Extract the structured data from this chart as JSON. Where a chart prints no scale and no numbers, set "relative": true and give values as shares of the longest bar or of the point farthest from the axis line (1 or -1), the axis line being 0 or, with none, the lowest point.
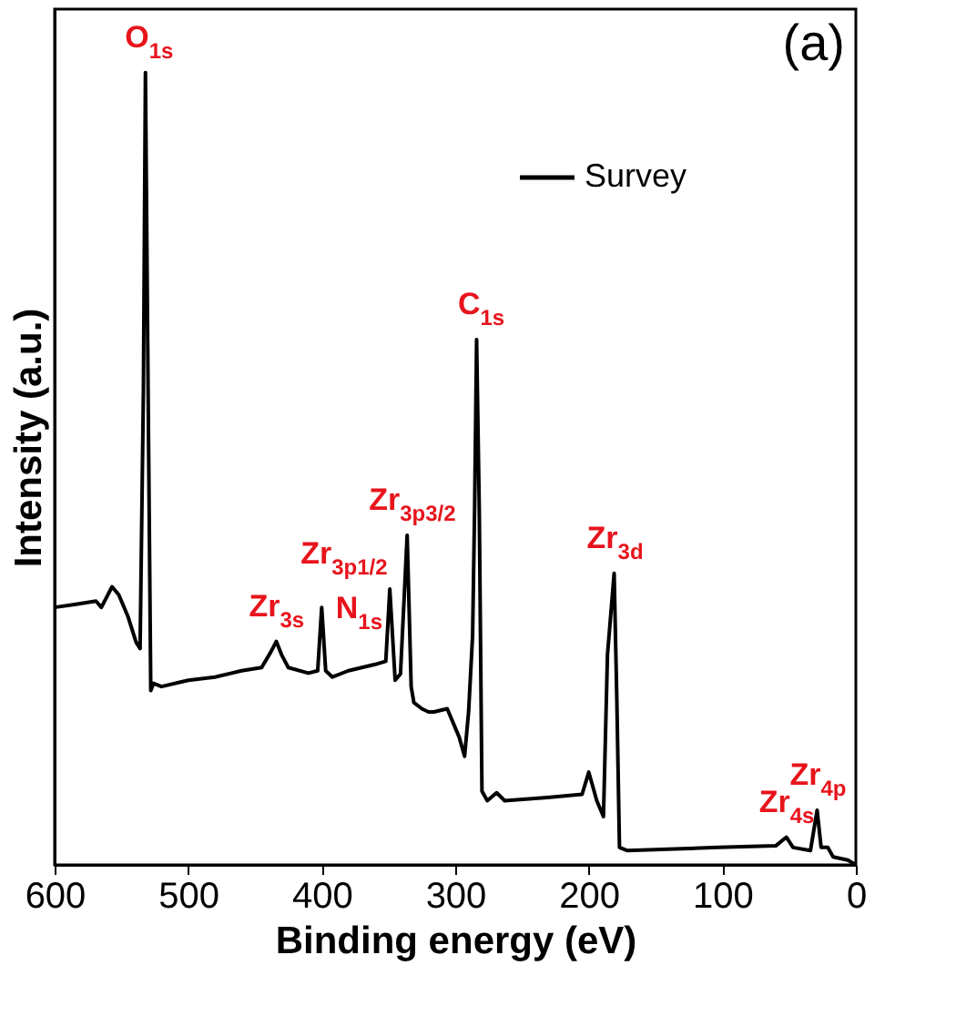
{
  "chart_data": {
    "type": "line",
    "relative": true,
    "xlabel": "Binding energy (eV)",
    "ylabel": "Intensity (a.u.)",
    "xlim": [
      600,
      0
    ],
    "xticks": [
      600,
      500,
      400,
      300,
      200,
      100,
      0
    ],
    "grid": false,
    "legend": "top right",
    "marker": "none",
    "line_style": "solid",
    "x": [
      600,
      584,
      569,
      565,
      557,
      552,
      545,
      539,
      536,
      533.5,
      532,
      530,
      528,
      526,
      520,
      500,
      480,
      460,
      445,
      438,
      434,
      430,
      425,
      410,
      403,
      400,
      397,
      392,
      380,
      360,
      352,
      349,
      345,
      341,
      336,
      333,
      331,
      325,
      320,
      316,
      306,
      297,
      293,
      290,
      287,
      285.5,
      284,
      282,
      280,
      276,
      269,
      263,
      231,
      205,
      200,
      194,
      189,
      186,
      181,
      179,
      177,
      171,
      103,
      60,
      52,
      47,
      34,
      29,
      26,
      21,
      17,
      6,
      0
    ],
    "series": [
      {
        "name": "Survey",
        "color": "#000000",
        "values": [
          0.325,
          0.329,
          0.333,
          0.325,
          0.351,
          0.341,
          0.313,
          0.281,
          0.273,
          0.6,
          1.0,
          0.6,
          0.22,
          0.229,
          0.225,
          0.233,
          0.237,
          0.245,
          0.249,
          0.269,
          0.282,
          0.265,
          0.249,
          0.242,
          0.245,
          0.325,
          0.245,
          0.237,
          0.245,
          0.253,
          0.257,
          0.348,
          0.233,
          0.241,
          0.416,
          0.225,
          0.205,
          0.197,
          0.193,
          0.193,
          0.197,
          0.161,
          0.137,
          0.193,
          0.289,
          0.448,
          0.663,
          0.448,
          0.093,
          0.081,
          0.091,
          0.081,
          0.085,
          0.089,
          0.117,
          0.081,
          0.061,
          0.265,
          0.368,
          0.209,
          0.022,
          0.018,
          0.022,
          0.024,
          0.035,
          0.022,
          0.018,
          0.069,
          0.022,
          0.022,
          0.01,
          0.006,
          0.0
        ]
      }
    ],
    "annotations": [
      {
        "text": "O$_{1s}$",
        "x": 532,
        "y": 1.0
      },
      {
        "text": "Zr$_{3s}$",
        "x": 434,
        "y": 0.282
      },
      {
        "text": "N$_{1s}$",
        "x": 400,
        "y": 0.325
      },
      {
        "text": "Zr$_{3p1/2}$",
        "x": 349,
        "y": 0.348
      },
      {
        "text": "Zr$_{3p3/2}$",
        "x": 336,
        "y": 0.416
      },
      {
        "text": "C$_{1s}$",
        "x": 284,
        "y": 0.663
      },
      {
        "text": "Zr$_{3d}$",
        "x": 181,
        "y": 0.368
      },
      {
        "text": "Zr$_{4s}$",
        "x": 52,
        "y": 0.035
      },
      {
        "text": "Zr$_{4p}$",
        "x": 29,
        "y": 0.069
      },
      "(a)"
    ]
  }
}
